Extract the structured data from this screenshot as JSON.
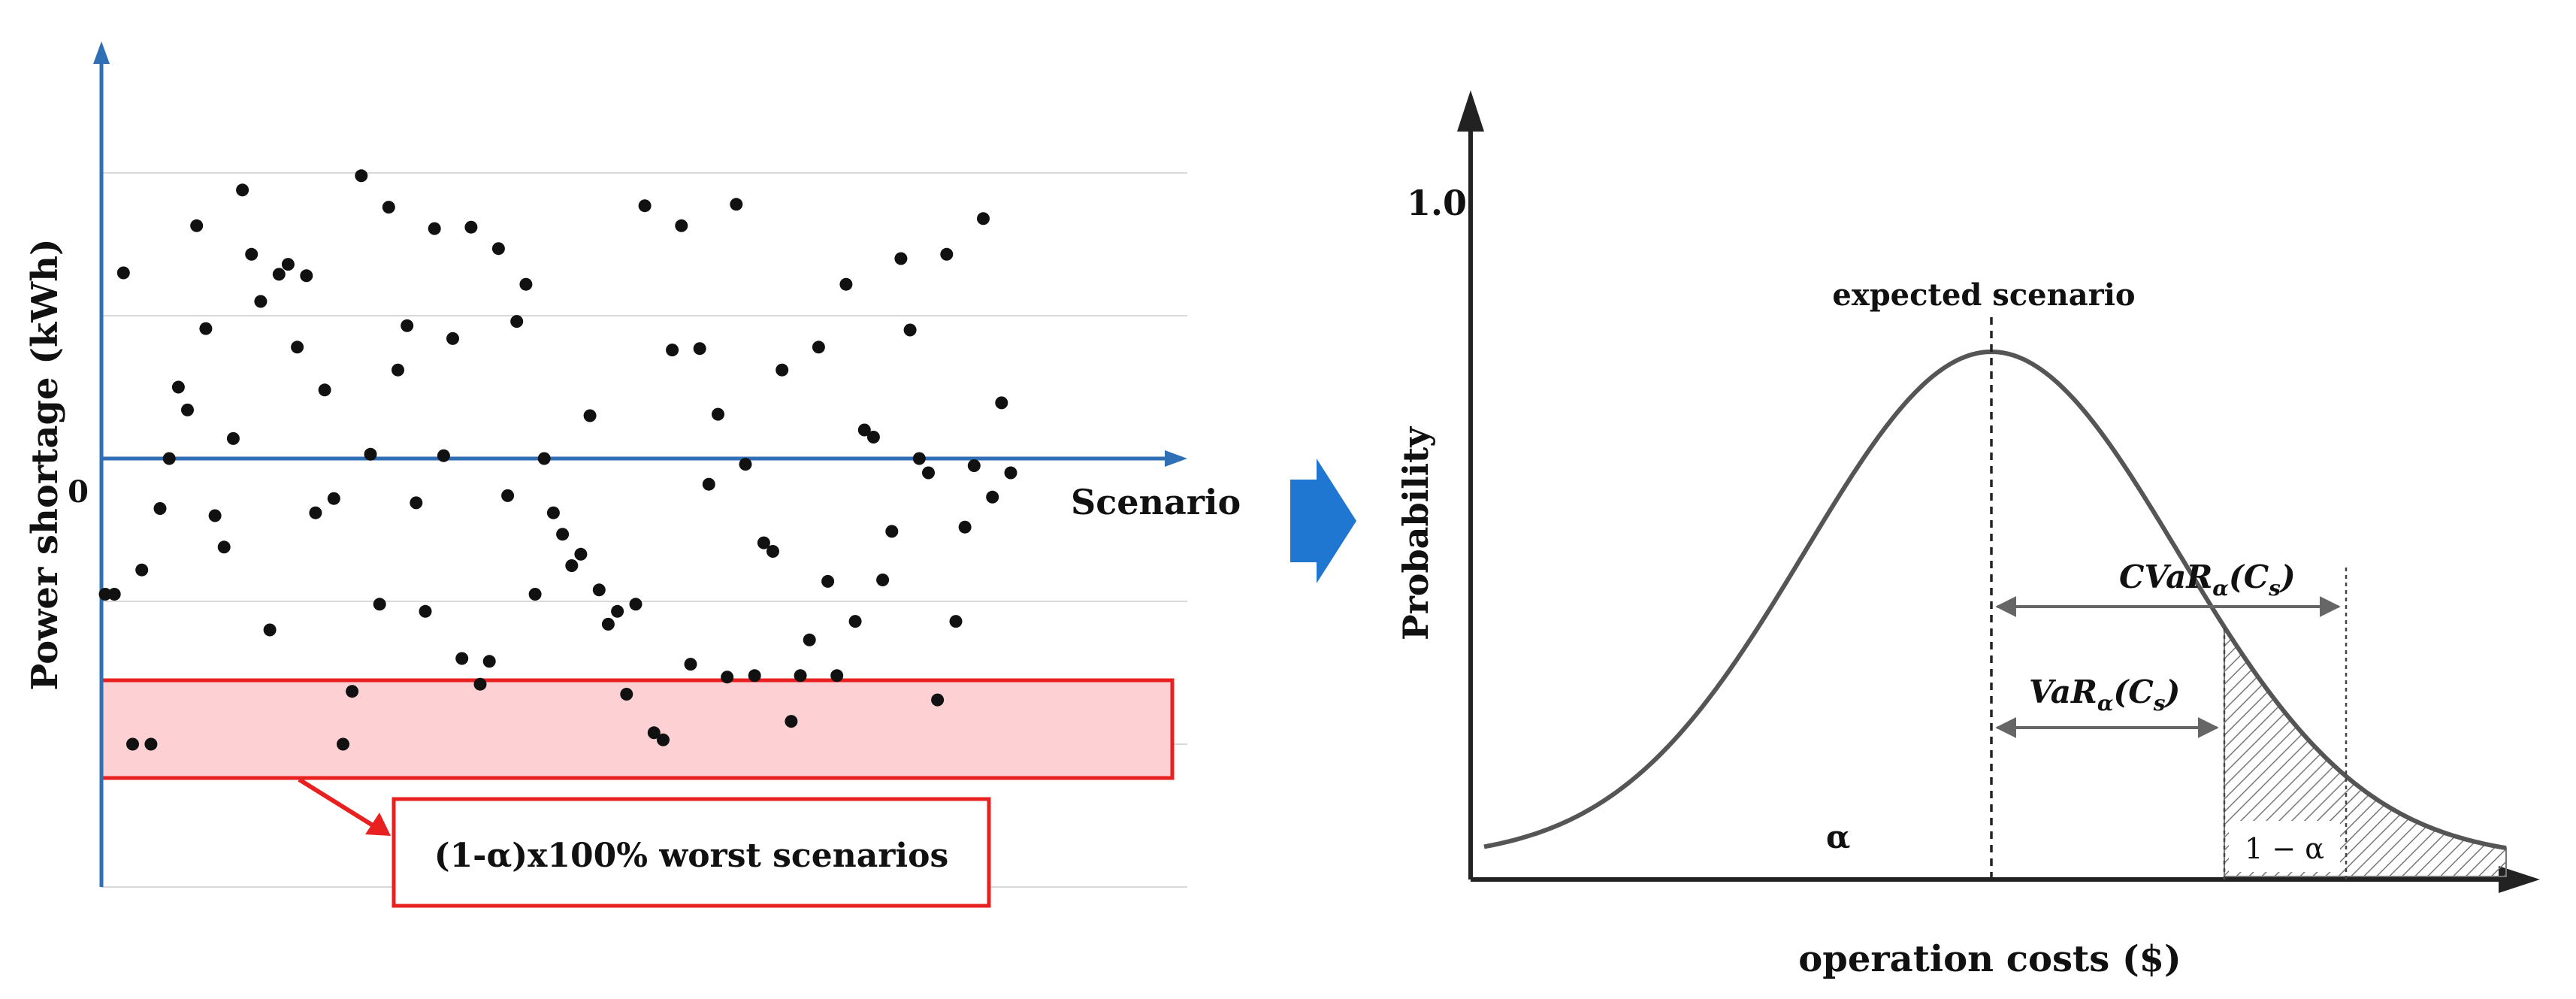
{
  "left_panel": {
    "y_axis_label": "Power shortage (kWh)",
    "zero_label": "0",
    "x_axis_label": "Scenario",
    "worst_band_label": "(1-α)x100% worst scenarios",
    "colors": {
      "axis": "#2e6fb5",
      "gridline": "#d9d9d9",
      "point": "#111111",
      "band_fill": "#fdd0d3",
      "band_stroke": "#e8201f"
    }
  },
  "arrow": {
    "color": "#1f77d2"
  },
  "right_panel": {
    "y_axis_label": "Probability",
    "y_tick_label": "1.0",
    "x_axis_label": "operation costs ($)",
    "expected_label": "expected scenario",
    "alpha_label": "α",
    "tail_label": "1 − α",
    "cvar_label": "CVaR",
    "cvar_sub": "α",
    "cvar_arg": "(C",
    "cvar_arg_sub": "s",
    "var_label": "VaR",
    "var_sub": "α",
    "var_arg": "(C",
    "var_arg_sub": "s",
    "close_paren": ")",
    "colors": {
      "curve": "#555555",
      "axis": "#222222",
      "hatch": "#777777"
    }
  },
  "chart_data": {
    "type": "scatter",
    "title": "",
    "xlabel": "Scenario",
    "ylabel": "Power shortage (kWh)",
    "ylim": [
      -3,
      2
    ],
    "grid": true,
    "series": [
      {
        "points": [
          [
            1,
            -0.95
          ],
          [
            2,
            -0.95
          ],
          [
            3,
            1.3
          ],
          [
            4,
            -2.0
          ],
          [
            5,
            -0.78
          ],
          [
            6,
            -2.0
          ],
          [
            7,
            -0.35
          ],
          [
            8,
            0.0
          ],
          [
            9,
            0.5
          ],
          [
            10,
            0.34
          ],
          [
            11,
            1.63
          ],
          [
            12,
            0.91
          ],
          [
            13,
            -0.4
          ],
          [
            14,
            -0.62
          ],
          [
            15,
            0.14
          ],
          [
            16,
            1.88
          ],
          [
            17,
            1.43
          ],
          [
            18,
            1.1
          ],
          [
            19,
            -1.2
          ],
          [
            20,
            1.29
          ],
          [
            21,
            1.36
          ],
          [
            22,
            0.78
          ],
          [
            23,
            1.28
          ],
          [
            24,
            -0.38
          ],
          [
            25,
            0.48
          ],
          [
            26,
            -0.28
          ],
          [
            27,
            -2.0
          ],
          [
            28,
            -1.63
          ],
          [
            29,
            1.98
          ],
          [
            30,
            0.03
          ],
          [
            31,
            -1.02
          ],
          [
            32,
            1.76
          ],
          [
            33,
            0.62
          ],
          [
            34,
            0.93
          ],
          [
            35,
            -0.31
          ],
          [
            36,
            -1.07
          ],
          [
            37,
            1.61
          ],
          [
            38,
            0.02
          ],
          [
            39,
            0.84
          ],
          [
            40,
            -1.4
          ],
          [
            41,
            1.62
          ],
          [
            42,
            -1.58
          ],
          [
            43,
            -1.42
          ],
          [
            44,
            1.47
          ],
          [
            45,
            -0.26
          ],
          [
            46,
            0.96
          ],
          [
            47,
            1.22
          ],
          [
            48,
            -0.95
          ],
          [
            49,
            0.0
          ],
          [
            50,
            -0.38
          ],
          [
            51,
            -0.53
          ],
          [
            52,
            -0.75
          ],
          [
            53,
            -0.67
          ],
          [
            54,
            0.3
          ],
          [
            55,
            -0.92
          ],
          [
            56,
            -1.16
          ],
          [
            57,
            -1.07
          ],
          [
            58,
            -1.65
          ],
          [
            59,
            -1.02
          ],
          [
            60,
            1.77
          ],
          [
            61,
            -1.92
          ],
          [
            62,
            -1.97
          ],
          [
            63,
            0.76
          ],
          [
            64,
            1.63
          ],
          [
            65,
            -1.44
          ],
          [
            66,
            0.77
          ],
          [
            67,
            -0.18
          ],
          [
            68,
            0.31
          ],
          [
            69,
            -1.53
          ],
          [
            70,
            1.78
          ],
          [
            71,
            -0.04
          ],
          [
            72,
            -1.52
          ],
          [
            73,
            -0.59
          ],
          [
            74,
            -0.65
          ],
          [
            75,
            0.62
          ],
          [
            76,
            -1.84
          ],
          [
            77,
            -1.52
          ],
          [
            78,
            -1.27
          ],
          [
            79,
            0.78
          ],
          [
            80,
            -0.86
          ],
          [
            81,
            -1.52
          ],
          [
            82,
            1.22
          ],
          [
            83,
            -1.14
          ],
          [
            84,
            0.2
          ],
          [
            85,
            0.15
          ],
          [
            86,
            -0.85
          ],
          [
            87,
            -0.51
          ],
          [
            88,
            1.4
          ],
          [
            89,
            0.9
          ],
          [
            90,
            0.0
          ],
          [
            91,
            -0.1
          ],
          [
            92,
            -1.69
          ],
          [
            93,
            1.43
          ],
          [
            94,
            -1.14
          ],
          [
            95,
            -0.48
          ],
          [
            96,
            -0.05
          ],
          [
            97,
            1.68
          ],
          [
            98,
            -0.27
          ],
          [
            99,
            0.39
          ],
          [
            100,
            -0.1
          ]
        ]
      }
    ]
  }
}
